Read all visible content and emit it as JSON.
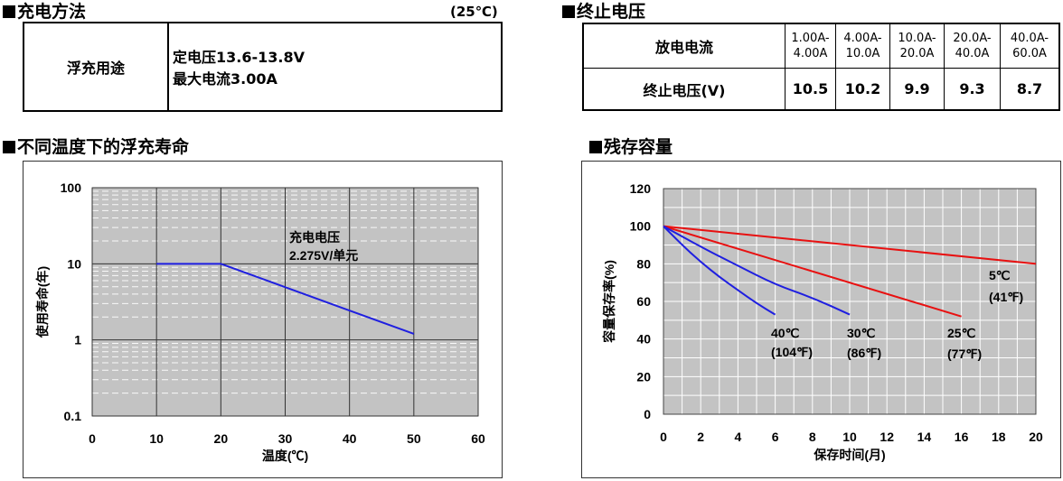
{
  "charging": {
    "title": "充电方法",
    "condition": "(25℃)",
    "use_label": "浮充用途",
    "voltage_line": "定电压13.6-13.8V",
    "current_line": "最大电流3.00A"
  },
  "cutoff": {
    "title": "终止电压",
    "row1_label": "放电电流",
    "row2_label": "终止电压(V)",
    "ranges": [
      {
        "top": "1.00A-",
        "bottom": "4.00A"
      },
      {
        "top": "4.00A-",
        "bottom": "10.0A"
      },
      {
        "top": "10.0A-",
        "bottom": "20.0A"
      },
      {
        "top": "20.0A-",
        "bottom": "40.0A"
      },
      {
        "top": "40.0A-",
        "bottom": "60.0A"
      }
    ],
    "voltages": [
      "10.5",
      "10.2",
      "9.9",
      "9.3",
      "8.7"
    ]
  },
  "chart_data": [
    {
      "type": "line",
      "title": "不同温度下的浮充寿命",
      "xlabel": "温度(℃)",
      "ylabel": "使用寿命(年)",
      "yscale": "log",
      "xlim": [
        0,
        60
      ],
      "ylim": [
        0.1,
        100
      ],
      "x_ticks": [
        "0",
        "10",
        "20",
        "30",
        "40",
        "50",
        "60"
      ],
      "y_ticks": [
        "0.1",
        "1",
        "10",
        "100"
      ],
      "annotation": {
        "line1": "充电电压",
        "line2": "2.275V/单元"
      },
      "series": [
        {
          "name": "2.275V/单元",
          "color": "#1f1fe0",
          "points": [
            [
              10,
              10
            ],
            [
              20,
              10
            ],
            [
              50,
              1.2
            ]
          ]
        }
      ]
    },
    {
      "type": "line",
      "title": "残存容量",
      "xlabel": "保存时间(月)",
      "ylabel": "容量保存率(%)",
      "xlim": [
        0,
        20
      ],
      "ylim": [
        0,
        120
      ],
      "x_ticks": [
        "0",
        "2",
        "4",
        "6",
        "8",
        "10",
        "12",
        "14",
        "16",
        "18",
        "20"
      ],
      "y_ticks": [
        "0",
        "20",
        "40",
        "60",
        "80",
        "100",
        "120"
      ],
      "series": [
        {
          "name": "5℃",
          "sub": "(41℉)",
          "color": "#e81010",
          "points": [
            [
              0,
              100
            ],
            [
              20,
              80
            ]
          ]
        },
        {
          "name": "25℃",
          "sub": "(77℉)",
          "color": "#e81010",
          "points": [
            [
              0,
              100
            ],
            [
              16,
              52
            ]
          ]
        },
        {
          "name": "30℃",
          "sub": "(86℉)",
          "color": "#1f1fe0",
          "points": [
            [
              0,
              100
            ],
            [
              2,
              89
            ],
            [
              4,
              79
            ],
            [
              6,
              69
            ],
            [
              8,
              62
            ],
            [
              10,
              53
            ]
          ]
        },
        {
          "name": "40℃",
          "sub": "(104℉)",
          "color": "#1f1fe0",
          "points": [
            [
              0,
              100
            ],
            [
              1,
              90
            ],
            [
              2,
              81
            ],
            [
              3,
              73
            ],
            [
              4,
              66
            ],
            [
              5,
              59
            ],
            [
              6,
              53
            ]
          ]
        }
      ]
    }
  ]
}
